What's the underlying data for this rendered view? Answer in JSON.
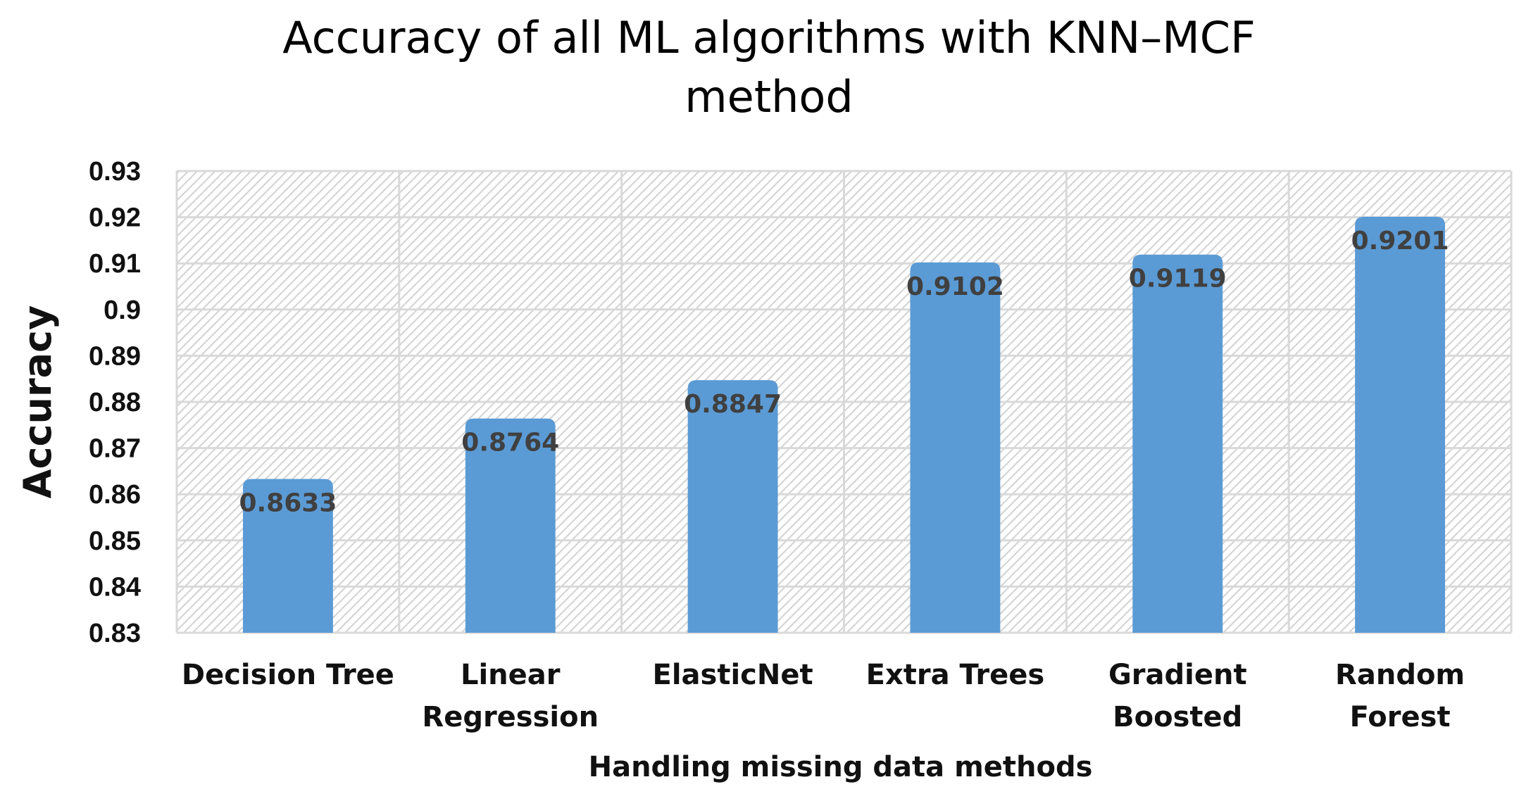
{
  "chart_data": {
    "type": "bar",
    "title": "Accuracy of all ML algorithms with KNN–MCF method",
    "title_lines": [
      "Accuracy of all ML algorithms with KNN–MCF",
      "method"
    ],
    "xlabel": "Handling missing data methods",
    "ylabel": "Accuracy",
    "categories": [
      "Decision Tree",
      "Linear Regression",
      "ElasticNet",
      "Extra Trees",
      "Gradient Boosted",
      "Random Forest"
    ],
    "category_lines": [
      [
        "Decision Tree"
      ],
      [
        "Linear",
        "Regression"
      ],
      [
        "ElasticNet"
      ],
      [
        "Extra Trees"
      ],
      [
        "Gradient",
        "Boosted"
      ],
      [
        "Random",
        "Forest"
      ]
    ],
    "values": [
      0.8633,
      0.8764,
      0.8847,
      0.9102,
      0.9119,
      0.9201
    ],
    "data_labels": [
      "0.8633",
      "0.8764",
      "0.8847",
      "0.9102",
      "0.9119",
      "0.9201"
    ],
    "ylim": [
      0.83,
      0.93
    ],
    "yticks": [
      0.83,
      0.84,
      0.85,
      0.86,
      0.87,
      0.88,
      0.89,
      0.9,
      0.91,
      0.92,
      0.93
    ],
    "ytick_labels": [
      "0.83",
      "0.84",
      "0.85",
      "0.86",
      "0.87",
      "0.88",
      "0.89",
      "0.9",
      "0.91",
      "0.92",
      "0.93"
    ],
    "grid": true,
    "legend": "none",
    "bar_color": "#5b9bd5",
    "plot_background": "hatched-light-gray"
  }
}
